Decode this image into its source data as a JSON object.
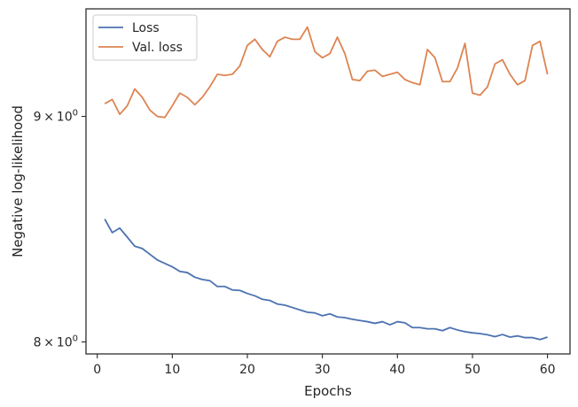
{
  "chart_data": {
    "type": "line",
    "title": "",
    "xlabel": "Epochs",
    "ylabel": "Negative log-likelihood",
    "yscale": "log",
    "grid": false,
    "legend_position": "top-left",
    "xlim": [
      -1.5,
      63
    ],
    "ylim": [
      7.95,
      9.52
    ],
    "x_ticks": [
      0,
      10,
      20,
      30,
      40,
      50,
      60
    ],
    "x_tick_labels": [
      "0",
      "10",
      "20",
      "30",
      "40",
      "50",
      "60"
    ],
    "y_ticks": [
      {
        "value": 8,
        "base": "8",
        "exp": "0"
      },
      {
        "value": 9,
        "base": "9",
        "exp": "0"
      }
    ],
    "y_times_sign": "×",
    "y_power_base": "10",
    "x": [
      1,
      2,
      3,
      4,
      5,
      6,
      7,
      8,
      9,
      10,
      11,
      12,
      13,
      14,
      15,
      16,
      17,
      18,
      19,
      20,
      21,
      22,
      23,
      24,
      25,
      26,
      27,
      28,
      29,
      30,
      31,
      32,
      33,
      34,
      35,
      36,
      37,
      38,
      39,
      40,
      41,
      42,
      43,
      44,
      45,
      46,
      47,
      48,
      49,
      50,
      51,
      52,
      53,
      54,
      55,
      56,
      57,
      58,
      59,
      60
    ],
    "series": [
      {
        "name": "Loss",
        "color": "#4c72b0",
        "values": [
          8.53,
          8.47,
          8.49,
          8.45,
          8.41,
          8.4,
          8.375,
          8.35,
          8.335,
          8.32,
          8.3,
          8.295,
          8.275,
          8.265,
          8.26,
          8.235,
          8.235,
          8.22,
          8.218,
          8.205,
          8.195,
          8.18,
          8.175,
          8.16,
          8.155,
          8.145,
          8.135,
          8.125,
          8.122,
          8.11,
          8.118,
          8.105,
          8.102,
          8.095,
          8.09,
          8.085,
          8.078,
          8.085,
          8.072,
          8.085,
          8.08,
          8.06,
          8.06,
          8.055,
          8.055,
          8.047,
          8.06,
          8.05,
          8.043,
          8.038,
          8.035,
          8.03,
          8.022,
          8.031,
          8.02,
          8.025,
          8.018,
          8.018,
          8.01,
          8.02
        ]
      },
      {
        "name": "Val. loss",
        "color": "#dd8452",
        "values": [
          9.06,
          9.08,
          9.01,
          9.05,
          9.13,
          9.09,
          9.03,
          9.0,
          8.995,
          9.05,
          9.11,
          9.09,
          9.055,
          9.09,
          9.14,
          9.2,
          9.195,
          9.2,
          9.24,
          9.34,
          9.37,
          9.32,
          9.285,
          9.36,
          9.38,
          9.37,
          9.37,
          9.43,
          9.31,
          9.28,
          9.3,
          9.38,
          9.3,
          9.175,
          9.17,
          9.215,
          9.22,
          9.19,
          9.2,
          9.21,
          9.175,
          9.16,
          9.15,
          9.32,
          9.28,
          9.165,
          9.165,
          9.23,
          9.35,
          9.11,
          9.1,
          9.14,
          9.25,
          9.27,
          9.2,
          9.15,
          9.17,
          9.34,
          9.36,
          9.2
        ]
      }
    ]
  }
}
